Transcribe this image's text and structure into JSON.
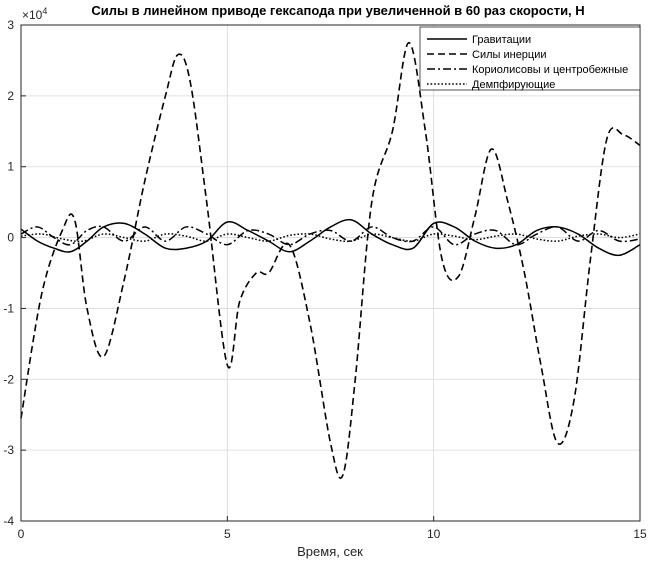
{
  "chart_data": {
    "type": "line",
    "title": "Силы в линейном приводе гексапода при увеличенной в 60 раз скорости, Н",
    "xlabel": "Время, сек",
    "ylabel": "",
    "exponent_label": "×10",
    "exponent_power": "4",
    "xlim": [
      0,
      15
    ],
    "ylim": [
      -4,
      3
    ],
    "y_scale_factor": 10000,
    "xticks": [
      0,
      5,
      10,
      15
    ],
    "yticks": [
      -4,
      -3,
      -2,
      -1,
      0,
      1,
      2,
      3
    ],
    "grid": true,
    "legend_position": "top-right",
    "series": [
      {
        "name": "Гравитации",
        "style": "solid",
        "x": [
          0,
          0.4,
          0.8,
          1.2,
          1.6,
          2.0,
          2.5,
          3.0,
          3.5,
          4.0,
          4.5,
          5.0,
          5.5,
          6.0,
          6.5,
          7.0,
          7.5,
          8.0,
          8.5,
          9.0,
          9.5,
          10.0,
          10.5,
          11.0,
          11.5,
          12.0,
          12.5,
          13.0,
          13.5,
          14.0,
          14.5,
          15.0
        ],
        "y": [
          0.12,
          -0.05,
          -0.15,
          -0.2,
          -0.05,
          0.15,
          0.2,
          0.05,
          -0.15,
          -0.15,
          -0.05,
          0.22,
          0.1,
          -0.05,
          -0.2,
          -0.05,
          0.15,
          0.25,
          0.05,
          -0.1,
          -0.15,
          0.2,
          0.15,
          -0.05,
          -0.15,
          -0.1,
          0.1,
          0.15,
          0.05,
          -0.15,
          -0.25,
          -0.1
        ]
      },
      {
        "name": "Силы инерции",
        "style": "dashed",
        "x": [
          0,
          0.5,
          1.0,
          1.3,
          1.6,
          2.0,
          2.5,
          3.0,
          3.5,
          3.8,
          4.1,
          4.5,
          5.0,
          5.3,
          5.7,
          6.0,
          6.5,
          7.0,
          7.5,
          7.8,
          8.1,
          8.5,
          9.0,
          9.4,
          9.8,
          10.2,
          10.6,
          11.0,
          11.4,
          11.8,
          12.2,
          12.6,
          13.0,
          13.4,
          13.8,
          14.2,
          14.6,
          15.0
        ],
        "y": [
          -2.55,
          -0.8,
          0.1,
          0.25,
          -1.0,
          -1.68,
          -0.6,
          0.8,
          2.0,
          2.58,
          2.2,
          0.5,
          -1.8,
          -0.9,
          -0.5,
          -0.5,
          -0.1,
          -1.2,
          -2.9,
          -3.35,
          -2.0,
          0.5,
          1.5,
          2.75,
          1.5,
          -0.3,
          -0.55,
          0.3,
          1.25,
          0.5,
          -0.5,
          -1.8,
          -2.9,
          -2.3,
          -0.3,
          1.4,
          1.45,
          1.3
        ]
      },
      {
        "name": "Кориолисовы и центробежные",
        "style": "dashdot",
        "x": [
          0,
          0.4,
          0.8,
          1.2,
          1.6,
          2.0,
          2.5,
          3.0,
          3.5,
          4.0,
          4.5,
          5.0,
          5.5,
          6.0,
          6.5,
          7.0,
          7.5,
          8.0,
          8.5,
          9.0,
          9.5,
          10.0,
          10.5,
          11.0,
          11.5,
          12.0,
          12.5,
          13.0,
          13.5,
          14.0,
          14.5,
          15.0
        ],
        "y": [
          0.05,
          0.15,
          0.0,
          -0.1,
          0.1,
          0.15,
          -0.05,
          0.15,
          -0.05,
          0.15,
          0.05,
          -0.1,
          0.1,
          0.05,
          -0.1,
          0.05,
          0.1,
          -0.05,
          0.15,
          0.0,
          -0.05,
          0.15,
          -0.1,
          0.05,
          0.1,
          -0.1,
          0.05,
          0.15,
          -0.05,
          0.1,
          -0.05,
          -0.02
        ]
      },
      {
        "name": "Демпфирующие",
        "style": "dotted",
        "x": [
          0,
          0.5,
          1.0,
          1.5,
          2.0,
          2.5,
          3.0,
          3.5,
          4.0,
          4.5,
          5.0,
          5.5,
          6.0,
          6.5,
          7.0,
          7.5,
          8.0,
          8.5,
          9.0,
          9.5,
          10.0,
          10.5,
          11.0,
          11.5,
          12.0,
          12.5,
          13.0,
          13.5,
          14.0,
          14.5,
          15.0
        ],
        "y": [
          0.02,
          0.05,
          -0.02,
          -0.05,
          0.05,
          0.0,
          -0.05,
          0.05,
          0.02,
          -0.05,
          0.05,
          0.0,
          -0.05,
          0.03,
          0.05,
          -0.02,
          -0.05,
          0.05,
          0.0,
          -0.05,
          0.05,
          0.02,
          -0.03,
          0.02,
          0.05,
          -0.02,
          -0.05,
          0.02,
          0.05,
          0.0,
          0.05
        ]
      }
    ]
  }
}
